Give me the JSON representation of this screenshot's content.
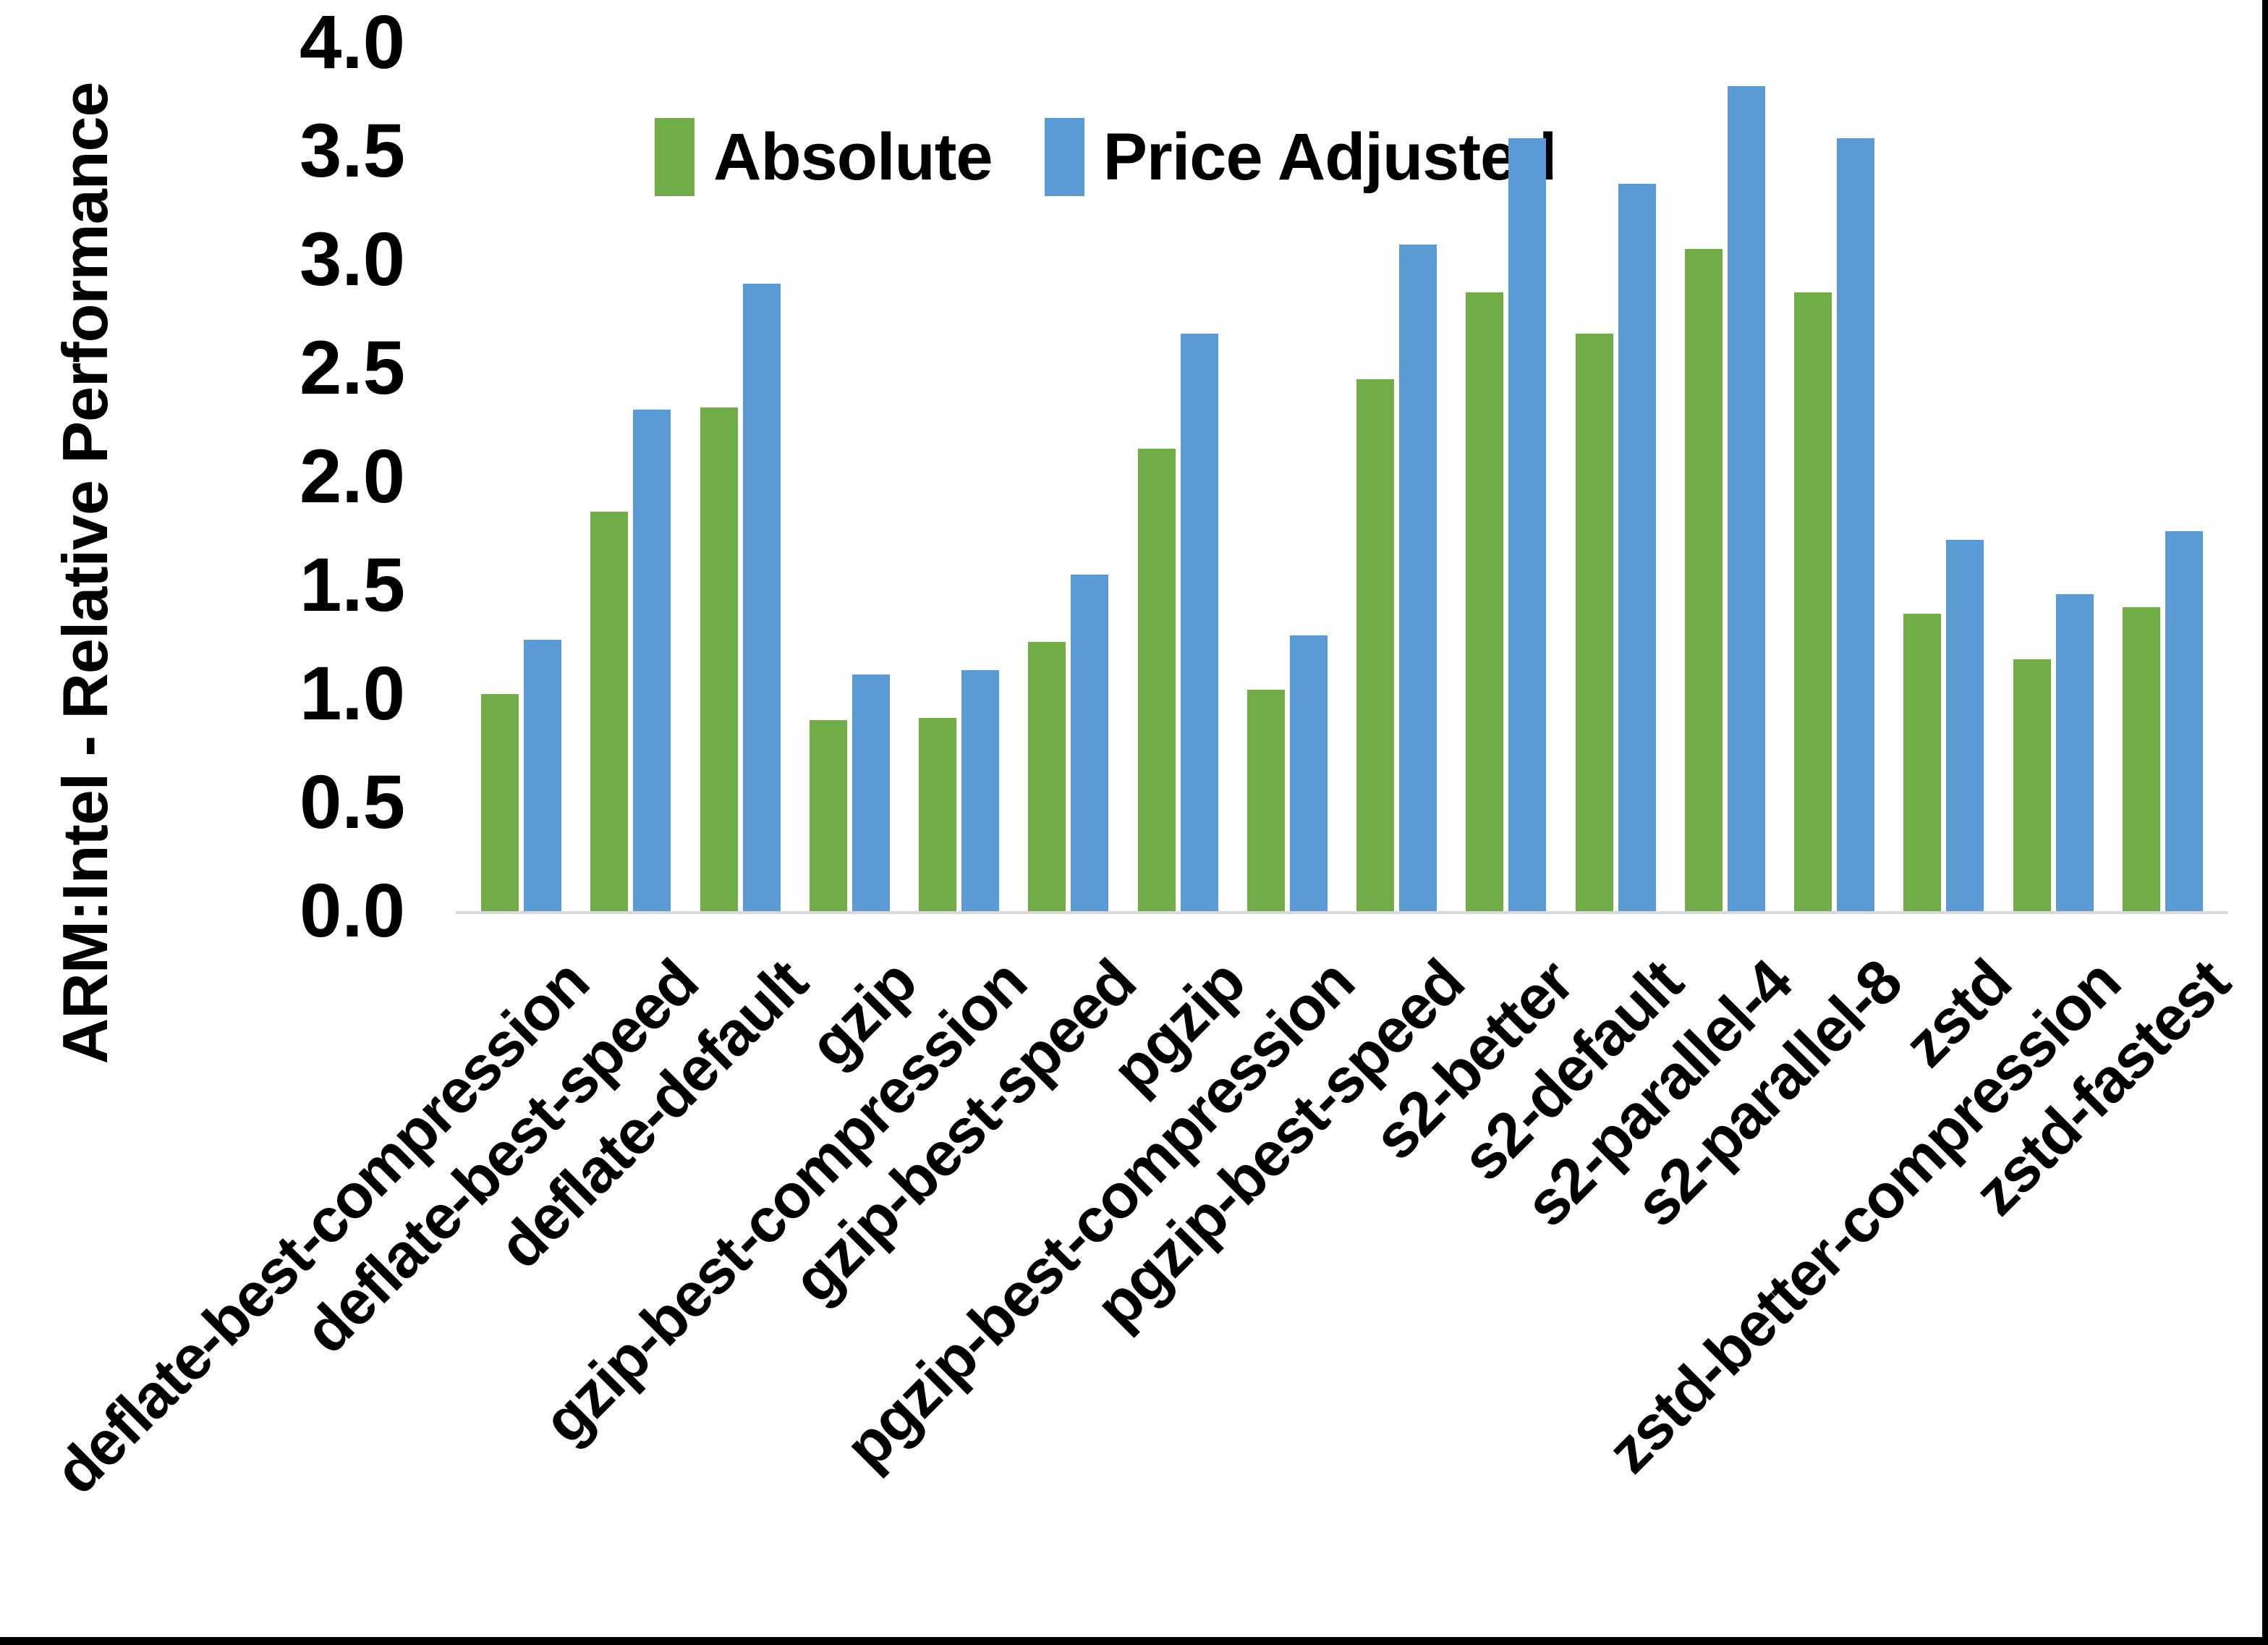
{
  "chart_data": {
    "type": "bar",
    "title": "",
    "ylabel": "ARM:Intel - Relative Performance",
    "xlabel": "",
    "categories": [
      "deflate-best-compression",
      "deflate-best-speed",
      "deflate-default",
      "gzip",
      "gzip-best-compression",
      "gzip-best-speed",
      "pgzip",
      "pgzip-best-compression",
      "pgzip-best-speed",
      "s2-better",
      "s2-default",
      "s2-parallel-4",
      "s2-parallel-8",
      "zstd",
      "zstd-better-compression",
      "zstd-fastest"
    ],
    "series": [
      {
        "name": "Absolute",
        "color": "#70AD47",
        "values": [
          1.0,
          1.84,
          2.32,
          0.88,
          0.89,
          1.24,
          2.13,
          1.02,
          2.45,
          2.85,
          2.66,
          3.05,
          2.85,
          1.37,
          1.16,
          1.4
        ]
      },
      {
        "name": "Price Adjusted",
        "color": "#5B9BD5",
        "values": [
          1.25,
          2.31,
          2.89,
          1.09,
          1.11,
          1.55,
          2.66,
          1.27,
          3.07,
          3.56,
          3.35,
          3.8,
          3.56,
          1.71,
          1.46,
          1.75
        ]
      }
    ],
    "ylim": [
      0.0,
      4.0
    ],
    "ytick_step": 0.5,
    "ytick_labels": [
      "0.0",
      "0.5",
      "1.0",
      "1.5",
      "2.0",
      "2.5",
      "3.0",
      "3.5",
      "4.0"
    ],
    "grid": false,
    "legend_position": "top-center",
    "x_label_rotation_deg": 45,
    "axis_line_color": "#D9D9D9",
    "text_color": "#000000",
    "background_color": "#FFFFFF",
    "window_border_color": "#000000"
  }
}
